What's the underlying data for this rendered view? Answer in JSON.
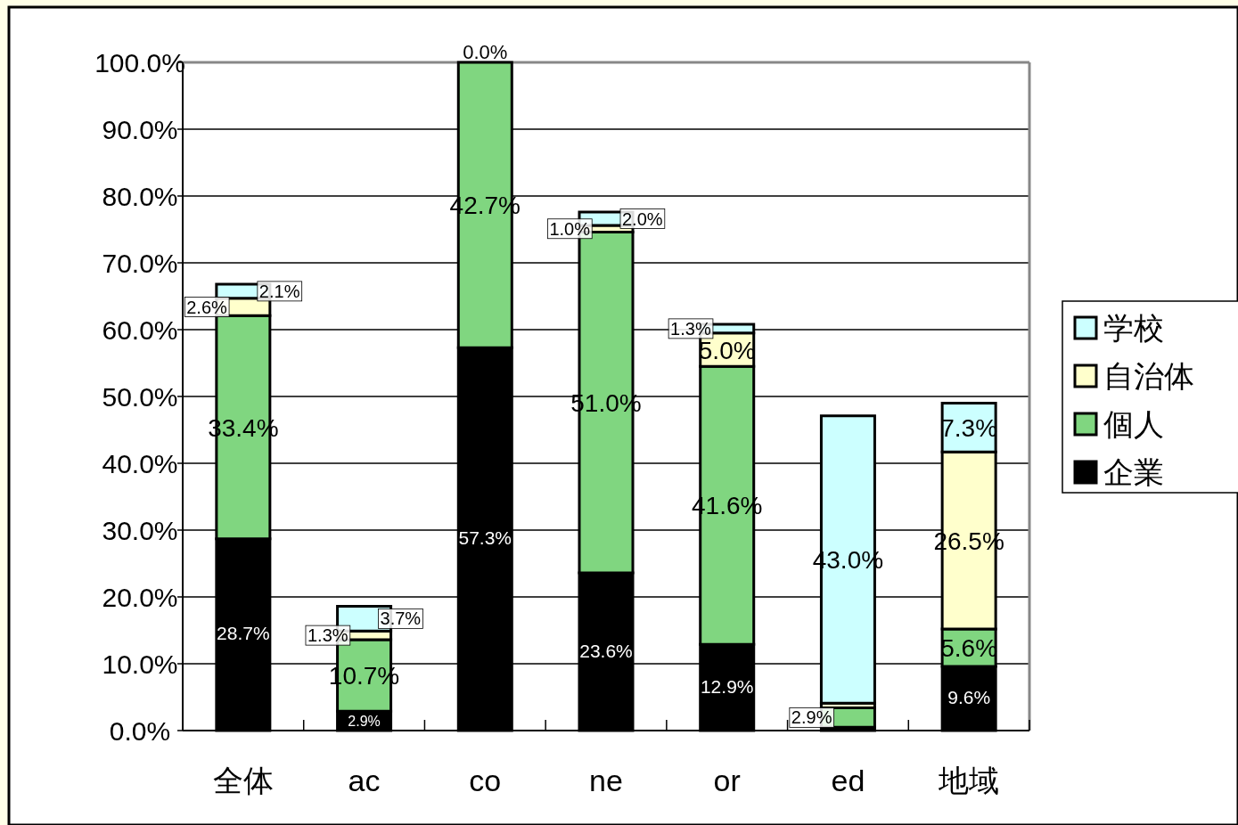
{
  "chart_data": {
    "type": "bar",
    "stacked": true,
    "categories": [
      "全体",
      "ac",
      "co",
      "ne",
      "or",
      "ed",
      "地域"
    ],
    "series": [
      {
        "name": "企業",
        "color": "#000000",
        "values": [
          28.7,
          2.9,
          57.3,
          23.6,
          12.9,
          0.5,
          9.6
        ],
        "value_labels": [
          "28.7%",
          "2.9%",
          "57.3%",
          "23.6%",
          "12.9%",
          null,
          "9.6%"
        ]
      },
      {
        "name": "個人",
        "color": "#80d680",
        "values": [
          33.4,
          10.7,
          42.7,
          51.0,
          41.6,
          2.9,
          5.6
        ],
        "value_labels": [
          "33.4%",
          "10.7%",
          "42.7%",
          "51.0%",
          "41.6%",
          "2.9%",
          "5.6%"
        ]
      },
      {
        "name": "自治体",
        "color": "#ffffcc",
        "values": [
          2.6,
          1.3,
          0.0,
          1.0,
          5.0,
          0.7,
          26.5
        ],
        "value_labels": [
          "2.6%",
          "1.3%",
          null,
          "1.0%",
          "5.0%",
          null,
          "26.5%"
        ]
      },
      {
        "name": "学校",
        "color": "#ccffff",
        "values": [
          2.1,
          3.7,
          0.0,
          2.0,
          1.3,
          43.0,
          7.3
        ],
        "value_labels": [
          "2.1%",
          "3.7%",
          "0.0%",
          "2.0%",
          "1.3%",
          "43.0%",
          "7.3%"
        ]
      }
    ],
    "ylim": [
      0,
      100
    ],
    "yticks": [
      {
        "value": 0,
        "label": "0.0%"
      },
      {
        "value": 10,
        "label": "10.0%"
      },
      {
        "value": 20,
        "label": "20.0%"
      },
      {
        "value": 30,
        "label": "30.0%"
      },
      {
        "value": 40,
        "label": "40.0%"
      },
      {
        "value": 50,
        "label": "50.0%"
      },
      {
        "value": 60,
        "label": "60.0%"
      },
      {
        "value": 70,
        "label": "70.0%"
      },
      {
        "value": 80,
        "label": "80.0%"
      },
      {
        "value": 90,
        "label": "90.0%"
      },
      {
        "value": 100,
        "label": "100.0%"
      }
    ],
    "grid": "y",
    "legend": "right"
  }
}
